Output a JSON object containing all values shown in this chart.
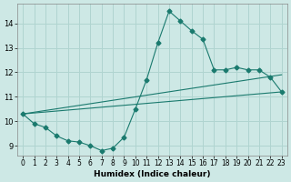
{
  "xlabel": "Humidex (Indice chaleur)",
  "bg_color": "#cde8e5",
  "grid_color": "#b0d4d0",
  "line_color": "#1a7a6e",
  "xlim": [
    -0.5,
    23.5
  ],
  "ylim": [
    8.6,
    14.8
  ],
  "xticks": [
    0,
    1,
    2,
    3,
    4,
    5,
    6,
    7,
    8,
    9,
    10,
    11,
    12,
    13,
    14,
    15,
    16,
    17,
    18,
    19,
    20,
    21,
    22,
    23
  ],
  "yticks": [
    9,
    10,
    11,
    12,
    13,
    14
  ],
  "line1_x": [
    0,
    1,
    2,
    3,
    4,
    5,
    6,
    7,
    8,
    9,
    10,
    11,
    12,
    13,
    14,
    15,
    16,
    17,
    18,
    19,
    20,
    21,
    22,
    23
  ],
  "line1_y": [
    10.3,
    9.9,
    9.75,
    9.4,
    9.2,
    9.15,
    9.0,
    8.8,
    8.9,
    9.35,
    10.5,
    11.7,
    13.2,
    14.5,
    14.1,
    13.7,
    13.35,
    12.1,
    12.1,
    12.2,
    12.1,
    12.1,
    11.8,
    11.2
  ],
  "line2_x": [
    0,
    23
  ],
  "line2_y": [
    10.3,
    11.2
  ],
  "line3_x": [
    0,
    23
  ],
  "line3_y": [
    10.3,
    11.9
  ]
}
